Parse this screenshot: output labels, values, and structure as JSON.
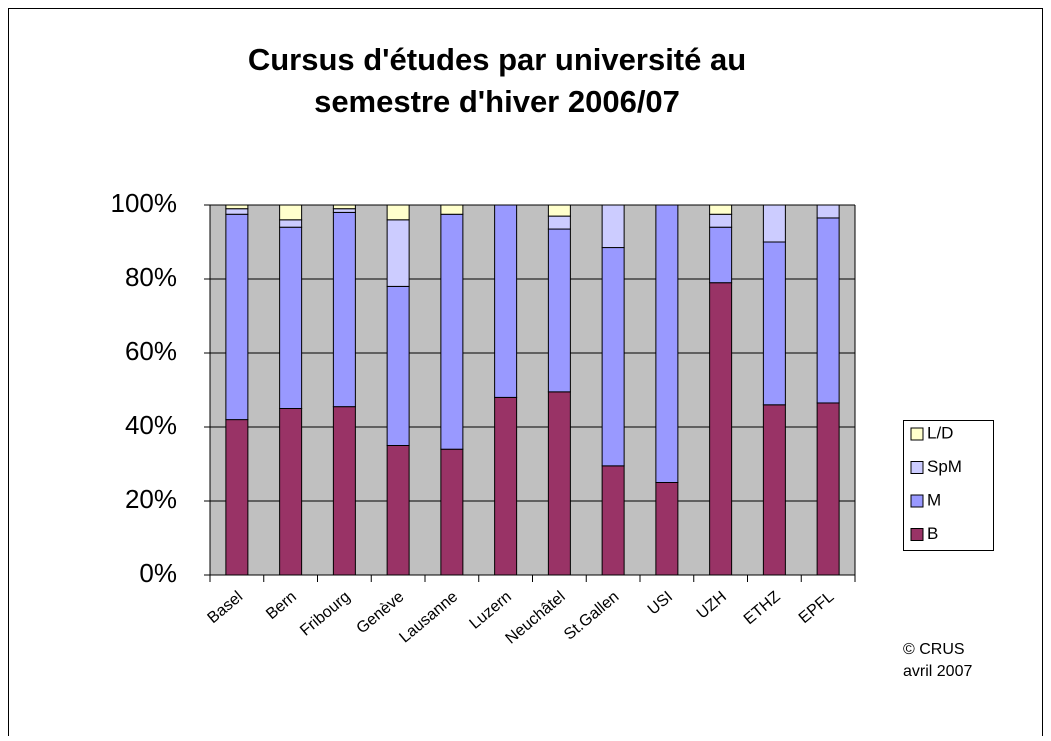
{
  "chart_data": {
    "type": "stacked_bar_100",
    "title": [
      "Cursus d'études par université au",
      "semestre d'hiver 2006/07"
    ],
    "categories": [
      "Basel",
      "Bern",
      "Fribourg",
      "Genève",
      "Lausanne",
      "Luzern",
      "Neuchâtel",
      "St.Gallen",
      "USI",
      "UZH",
      "ETHZ",
      "EPFL"
    ],
    "series": [
      {
        "name": "B",
        "color": "#993366",
        "values": [
          42,
          45,
          45.5,
          35,
          34,
          48,
          49.5,
          29.5,
          25,
          79,
          46,
          46.5
        ]
      },
      {
        "name": "M",
        "color": "#9999ff",
        "values": [
          55.5,
          49,
          52.5,
          43,
          63.5,
          52,
          44,
          59,
          75,
          15,
          44,
          50
        ]
      },
      {
        "name": "SpM",
        "color": "#ccccff",
        "values": [
          1.5,
          2,
          1,
          18,
          0,
          0,
          3.5,
          11.5,
          0,
          3.5,
          10,
          3.5
        ]
      },
      {
        "name": "L/D",
        "color": "#ffffcc",
        "values": [
          1,
          4,
          1,
          4,
          2.5,
          0,
          3,
          0,
          0,
          2.5,
          0,
          0
        ]
      }
    ],
    "ylim": [
      0,
      100
    ],
    "yticks": [
      {
        "value": 0,
        "label": "0%"
      },
      {
        "value": 20,
        "label": "20%"
      },
      {
        "value": 40,
        "label": "40%"
      },
      {
        "value": 60,
        "label": "60%"
      },
      {
        "value": 80,
        "label": "80%"
      },
      {
        "value": 100,
        "label": "100%"
      }
    ],
    "grid": true,
    "legend": "right",
    "annotation": [
      "© CRUS",
      "avril 2007"
    ]
  }
}
